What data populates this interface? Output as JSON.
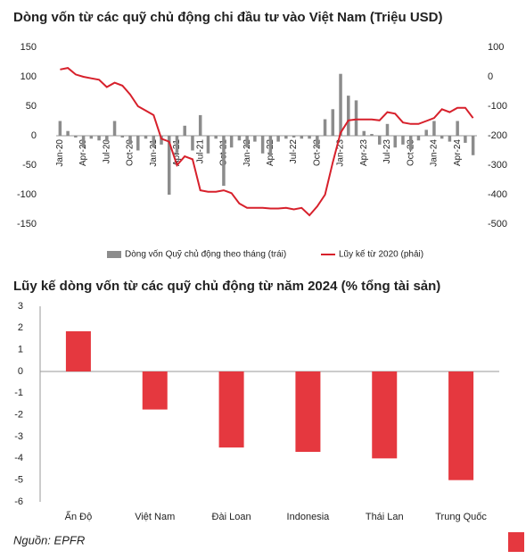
{
  "chart_data": [
    {
      "type": "combo",
      "title": "Dòng vốn từ các quỹ chủ động chi đầu tư vào Việt Nam (Triệu USD)",
      "categories": [
        "Jan-20",
        null,
        null,
        "Apr-20",
        null,
        null,
        "Jul-20",
        null,
        null,
        "Oct-20",
        null,
        null,
        "Jan-21",
        null,
        null,
        "Apr-21",
        null,
        null,
        "Jul-21",
        null,
        null,
        "Oct-21",
        null,
        null,
        "Jan-22",
        null,
        null,
        "Apr-22",
        null,
        null,
        "Jul-22",
        null,
        null,
        "Oct-22",
        null,
        null,
        "Jan-23",
        null,
        null,
        "Apr-23",
        null,
        null,
        "Jul-23",
        null,
        null,
        "Oct-23",
        null,
        null,
        "Jan-24",
        null,
        null,
        "Apr-24",
        null,
        null
      ],
      "series": [
        {
          "name": "Dòng vốn Quỹ chủ động theo tháng (trái)",
          "color": "#8c8c8c",
          "kind": "bar",
          "values": [
            25,
            8,
            -3,
            -20,
            -5,
            -8,
            -10,
            25,
            -3,
            -15,
            -25,
            -5,
            -20,
            -15,
            -100,
            -30,
            17,
            -25,
            35,
            -30,
            -5,
            -85,
            -20,
            -8,
            -20,
            -10,
            -30,
            -35,
            -10,
            -5,
            -3,
            -5,
            -5,
            -20,
            28,
            45,
            105,
            68,
            60,
            8,
            3,
            -15,
            20,
            -20,
            -15,
            -25,
            -8,
            10,
            25,
            -5,
            -10,
            25,
            -12,
            -33
          ]
        },
        {
          "name": "Lũy kế từ 2020 (phải)",
          "color": "#d7202b",
          "kind": "line",
          "axis": "y2",
          "values": [
            25,
            30,
            8,
            0,
            -5,
            -10,
            -35,
            -20,
            -30,
            -60,
            -100,
            -115,
            -130,
            -210,
            -220,
            -300,
            -270,
            -280,
            -385,
            -390,
            -390,
            -385,
            -395,
            -430,
            -445,
            -445,
            -445,
            -447,
            -447,
            -445,
            -450,
            -445,
            -470,
            -440,
            -400,
            -290,
            -190,
            -148,
            -145,
            -145,
            -145,
            -148,
            -120,
            -125,
            -155,
            -160,
            -160,
            -150,
            -140,
            -110,
            -120,
            -105,
            -105,
            -140
          ]
        }
      ],
      "ylim": [
        -150,
        150
      ],
      "yticks": [
        -150,
        -100,
        -50,
        0,
        50,
        100,
        150
      ],
      "y2lim": [
        -500,
        100
      ],
      "y2ticks": [
        -500,
        -400,
        -300,
        -200,
        -100,
        0,
        100
      ]
    },
    {
      "type": "bar",
      "title": "Lũy kế dòng vốn từ các quỹ chủ động từ năm 2024 (% tổng tài sản)",
      "categories": [
        "Ấn Độ",
        "Việt Nam",
        "Đài Loan",
        "Indonesia",
        "Thái Lan",
        "Trung Quốc"
      ],
      "values": [
        1.85,
        -1.75,
        -3.5,
        -3.7,
        -4.0,
        -5.0
      ],
      "color": "#e5383f",
      "ylim": [
        -6,
        3
      ],
      "yticks": [
        -6,
        -5,
        -4,
        -3,
        -2,
        -1,
        0,
        1,
        2,
        3
      ]
    }
  ],
  "source": "Nguồn: EPFR"
}
